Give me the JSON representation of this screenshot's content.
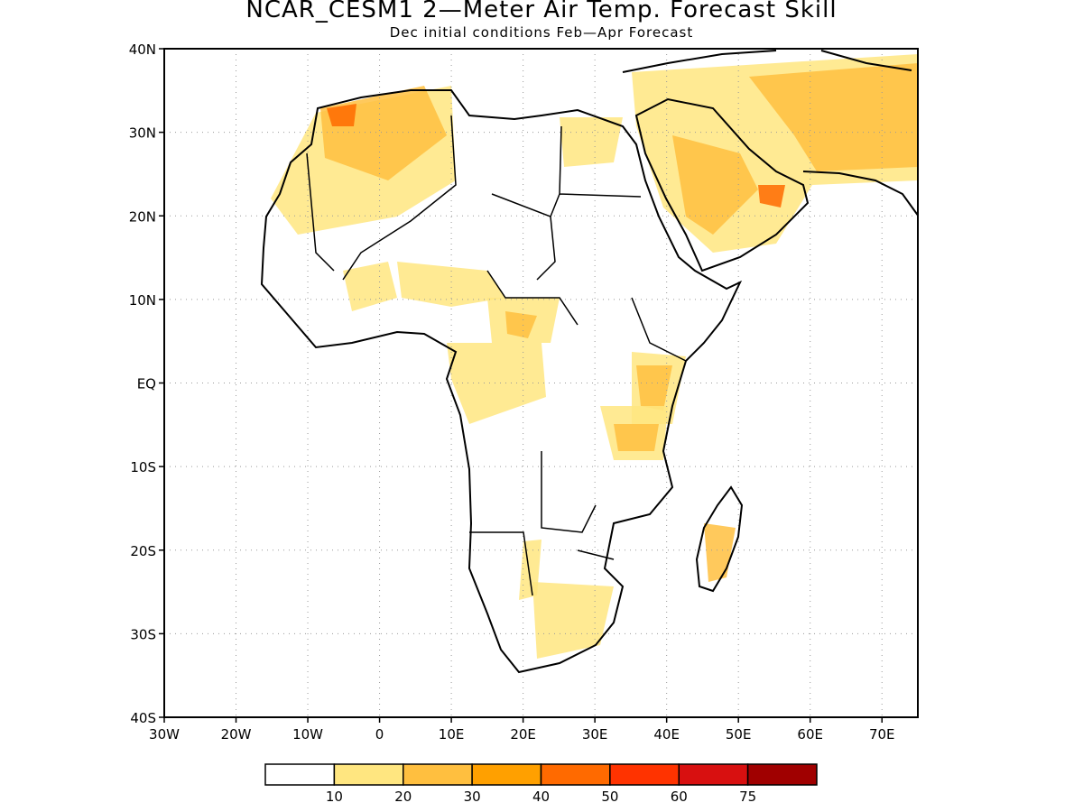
{
  "title": "NCAR_CESM1 2—Meter Air Temp. Forecast Skill",
  "subtitle": "Dec initial conditions  Feb—Apr Forecast",
  "chart_data": {
    "type": "heatmap",
    "title": "NCAR_CESM1 2—Meter Air Temp. Forecast Skill",
    "subtitle": "Dec initial conditions  Feb—Apr Forecast",
    "lon_range": [
      -30,
      75
    ],
    "lat_range": [
      -40,
      40
    ],
    "grid": "dotted",
    "x_tick_labels": [
      "30W",
      "20W",
      "10W",
      "0",
      "10E",
      "20E",
      "30E",
      "40E",
      "50E",
      "60E",
      "70E"
    ],
    "y_tick_labels": [
      "40N",
      "30N",
      "20N",
      "10N",
      "EQ",
      "10S",
      "20S",
      "30S",
      "40S"
    ],
    "colorbar": {
      "thresholds": [
        "10",
        "20",
        "30",
        "40",
        "50",
        "60",
        "75"
      ],
      "colors": [
        "#ffffff",
        "#ffe680",
        "#ffbf3f",
        "#ffa000",
        "#ff6a00",
        "#ff3300",
        "#d81010",
        "#a00000"
      ]
    }
  }
}
